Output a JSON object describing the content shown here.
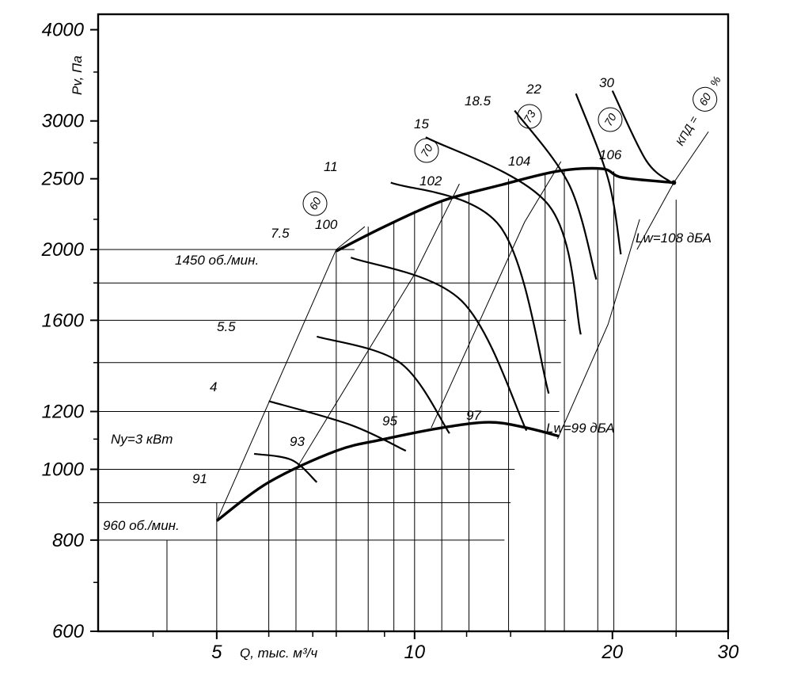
{
  "chart_data": {
    "type": "line",
    "title": "",
    "xlabel": "Q, тыс. м³/ч",
    "ylabel": "Pv, Па",
    "x_scale": "log",
    "y_scale": "log",
    "xlim": [
      3.3,
      30
    ],
    "ylim": [
      600,
      4200
    ],
    "x_ticks": [
      {
        "value": 5,
        "label": "5"
      },
      {
        "value": 10,
        "label": "10"
      },
      {
        "value": 20,
        "label": "20"
      },
      {
        "value": 30,
        "label": "30"
      }
    ],
    "y_ticks": [
      {
        "value": 600,
        "label": "600"
      },
      {
        "value": 800,
        "label": "800"
      },
      {
        "value": 1000,
        "label": "1000"
      },
      {
        "value": 1200,
        "label": "1200"
      },
      {
        "value": 1600,
        "label": "1600"
      },
      {
        "value": 2000,
        "label": "2000"
      },
      {
        "value": 2500,
        "label": "2500"
      },
      {
        "value": 3000,
        "label": "3000"
      },
      {
        "value": 4000,
        "label": "4000"
      }
    ],
    "minor_x_ticks": [
      4,
      6,
      7,
      7.6,
      9,
      12,
      14,
      25
    ],
    "minor_y_ticks": [
      700,
      900,
      1100,
      1400,
      1800,
      2200,
      2800,
      3500
    ],
    "grid_h": [
      {
        "y": 2000,
        "x_end": 8.1
      },
      {
        "y": 1800,
        "x_end": 17.4
      },
      {
        "y": 1600,
        "x_end": 17.0
      },
      {
        "y": 1400,
        "x_end": 16.7
      },
      {
        "y": 1200,
        "x_end": 16.6
      },
      {
        "y": 1000,
        "x_end": 14.2
      },
      {
        "y": 900,
        "x_end": 14.0
      },
      {
        "y": 800,
        "x_end": 13.7
      }
    ],
    "grid_v": [
      {
        "x": 4.2,
        "y_top": 800
      },
      {
        "x": 5.0,
        "y_top": 900
      },
      {
        "x": 6.0,
        "y_top": 1200
      },
      {
        "x": 6.6,
        "y_top": 1000
      },
      {
        "x": 7.6,
        "y_top": 2000
      },
      {
        "x": 8.5,
        "y_top": 2150
      },
      {
        "x": 9.3,
        "y_top": 2180
      },
      {
        "x": 10.0,
        "y_top": 2260
      },
      {
        "x": 11.0,
        "y_top": 2330
      },
      {
        "x": 12.1,
        "y_top": 2400
      },
      {
        "x": 13.9,
        "y_top": 2500
      },
      {
        "x": 15.8,
        "y_top": 2540
      },
      {
        "x": 16.9,
        "y_top": 2560
      },
      {
        "x": 19.0,
        "y_top": 2570
      },
      {
        "x": 20.1,
        "y_top": 2560
      },
      {
        "x": 25.0,
        "y_top": 2340
      }
    ],
    "efficiency_lines": [
      {
        "label": "60",
        "points": [
          [
            5.0,
            850
          ],
          [
            7.6,
            2000
          ],
          [
            8.4,
            2150
          ]
        ]
      },
      {
        "label": "70",
        "points": [
          [
            6.6,
            1000
          ],
          [
            10.0,
            1850
          ],
          [
            11.7,
            2460
          ]
        ]
      },
      {
        "label": "73",
        "points": [
          [
            10.6,
            1140
          ],
          [
            14.7,
            2180
          ],
          [
            16.7,
            2640
          ]
        ]
      },
      {
        "label": "70",
        "points": [
          [
            16.5,
            1100
          ],
          [
            19.7,
            1580
          ],
          [
            22.0,
            2200
          ]
        ]
      },
      {
        "label": "60",
        "points": [
          [
            21.8,
            2000
          ],
          [
            24.8,
            2470
          ],
          [
            28.0,
            2900
          ]
        ]
      }
    ],
    "series": [
      {
        "name": "Ny=3 кВт",
        "values": [
          [
            5.7,
            1050
          ],
          [
            6.5,
            1030
          ],
          [
            7.1,
            960
          ]
        ]
      },
      {
        "name": "4",
        "values": [
          [
            6.0,
            1240
          ],
          [
            8.0,
            1150
          ],
          [
            9.7,
            1060
          ]
        ]
      },
      {
        "name": "5.5",
        "values": [
          [
            7.1,
            1520
          ],
          [
            9.5,
            1400
          ],
          [
            11.3,
            1120
          ]
        ]
      },
      {
        "name": "7.5",
        "values": [
          [
            8.0,
            1950
          ],
          [
            11.8,
            1700
          ],
          [
            14.8,
            1130
          ]
        ]
      },
      {
        "name": "11",
        "values": [
          [
            9.2,
            2470
          ],
          [
            13.5,
            2150
          ],
          [
            16.0,
            1270
          ]
        ]
      },
      {
        "name": "15",
        "values": [
          [
            10.4,
            2850
          ],
          [
            16.0,
            2300
          ],
          [
            17.9,
            1530
          ]
        ]
      },
      {
        "name": "18.5",
        "values": [
          [
            14.2,
            3100
          ],
          [
            17.2,
            2450
          ],
          [
            18.9,
            1820
          ]
        ]
      },
      {
        "name": "22",
        "values": [
          [
            17.6,
            3270
          ],
          [
            19.7,
            2500
          ],
          [
            20.6,
            1970
          ]
        ]
      },
      {
        "name": "30",
        "values": [
          [
            20.0,
            3300
          ],
          [
            22.5,
            2650
          ],
          [
            24.6,
            2470
          ]
        ]
      }
    ],
    "operating_limits": [
      {
        "name": "1450 об./мин.",
        "values": [
          [
            7.6,
            1990
          ],
          [
            9.0,
            2150
          ],
          [
            11.0,
            2330
          ],
          [
            13.5,
            2450
          ],
          [
            16.5,
            2560
          ],
          [
            19.3,
            2580
          ],
          [
            20.7,
            2510
          ],
          [
            24.8,
            2470
          ]
        ]
      },
      {
        "name": "960 об./мин.",
        "values": [
          [
            5.0,
            850
          ],
          [
            6.0,
            960
          ],
          [
            7.6,
            1060
          ],
          [
            9.0,
            1100
          ],
          [
            11.0,
            1140
          ],
          [
            13.0,
            1160
          ],
          [
            14.8,
            1140
          ],
          [
            16.6,
            1110
          ]
        ]
      }
    ],
    "annotations": {
      "rpm_high": "1450 об./мин.",
      "rpm_low": "960 об./мин.",
      "power_label": "Ny=3 кВт",
      "lw_high": "Lw=108 дБА",
      "lw_low": "Lw=99 дБА",
      "efficiency_label": "КПД = ",
      "efficiency_unit": "%",
      "noise_levels_upper": [
        "100",
        "102",
        "104",
        "106"
      ],
      "noise_levels_lower": [
        "91",
        "93",
        "95",
        "97"
      ],
      "efficiency_values": [
        "60",
        "70",
        "73",
        "70",
        "60"
      ]
    },
    "grid": "partial",
    "legend": "none"
  }
}
